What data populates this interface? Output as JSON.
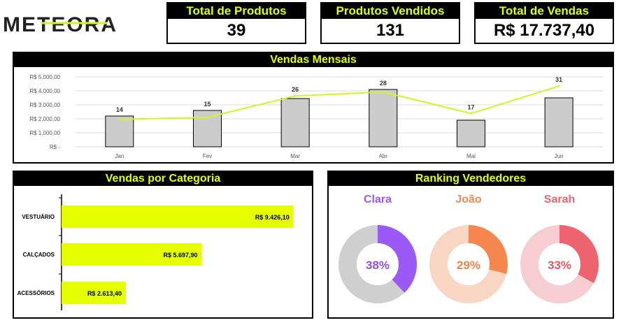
{
  "logo": {
    "text": "METEORA"
  },
  "kpis": [
    {
      "title": "Total de Produtos",
      "value": "39"
    },
    {
      "title": "Produtos Vendidos",
      "value": "131"
    },
    {
      "title": "Total de Vendas",
      "value": "R$ 17.737,40"
    }
  ],
  "monthly": {
    "title": "Vendas Mensais"
  },
  "category": {
    "title": "Vendas por Categoria"
  },
  "ranking": {
    "title": "Ranking Vendedores"
  },
  "colors": {
    "accent": "#e5ff00",
    "bar": "#cccccc",
    "line": "#d8f02a",
    "clara": "#9b59f6",
    "joao": "#f5874f",
    "sarah": "#ee6370"
  },
  "chart_data": [
    {
      "type": "bar",
      "title": "Vendas Mensais",
      "categories": [
        "Jan",
        "Fev",
        "Mar",
        "Abr",
        "Mai",
        "Jun"
      ],
      "ylim": [
        0,
        5000
      ],
      "yticks": [
        "R$ -",
        "R$ 1.000,00",
        "R$ 2.000,00",
        "R$ 3.000,00",
        "R$ 4.000,00",
        "R$ 5.000,00"
      ],
      "grid": true,
      "series": [
        {
          "values": [
            2200,
            2600,
            3450,
            4100,
            1900,
            3500
          ],
          "chart": "bar"
        },
        {
          "values": [
            14,
            15,
            26,
            28,
            17,
            31
          ],
          "chart": "line",
          "labels": [
            "14",
            "15",
            "26",
            "28",
            "17",
            "31"
          ]
        }
      ]
    },
    {
      "type": "bar",
      "orientation": "horizontal",
      "title": "Vendas por Categoria",
      "categories": [
        "VESTUÁRIO",
        "CALÇADOS",
        "ACESSÓRIOS"
      ],
      "values": [
        9426.1,
        5697.9,
        2613.4
      ],
      "labels": [
        "R$ 9.426,10",
        "R$ 5.697,90",
        "R$ 2.613,40"
      ]
    },
    {
      "type": "pie",
      "title": "Ranking Vendedores",
      "donuts": [
        {
          "name": "Clara",
          "value": 38,
          "label": "38%",
          "color": "#9b59f6",
          "track": "#cfcfcf",
          "text": "#8f4ff0"
        },
        {
          "name": "João",
          "value": 29,
          "label": "29%",
          "color": "#f5874f",
          "track": "#f8d6c3",
          "text": "#f0824c"
        },
        {
          "name": "Sarah",
          "value": 33,
          "label": "33%",
          "color": "#ee6370",
          "track": "#f6cdd0",
          "text": "#ec5565"
        }
      ]
    }
  ]
}
